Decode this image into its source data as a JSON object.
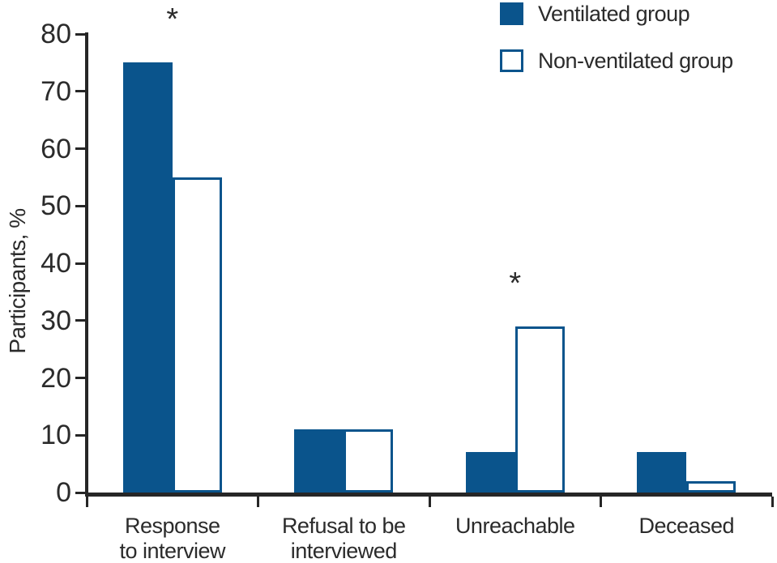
{
  "colors": {
    "bar_blue": "#0a548c",
    "axis": "#262626",
    "text": "#2b2b2b",
    "background": "#ffffff"
  },
  "chart_data": {
    "type": "bar",
    "title": "",
    "xlabel": "",
    "ylabel": "Participants, %",
    "ylim": [
      0,
      80
    ],
    "yticks": [
      0,
      10,
      20,
      30,
      40,
      50,
      60,
      70,
      80
    ],
    "grid": false,
    "legend_position": "top-right",
    "categories": [
      "Response to interview",
      "Refusal to be interviewed",
      "Unreachable",
      "Deceased"
    ],
    "category_label_lines": [
      [
        "Response",
        "to interview"
      ],
      [
        "Refusal to be",
        "interviewed"
      ],
      [
        "Unreachable"
      ],
      [
        "Deceased"
      ]
    ],
    "series": [
      {
        "name": "Ventilated group",
        "style": "solid",
        "values": [
          75,
          11,
          7,
          7
        ]
      },
      {
        "name": "Non-ventilated group",
        "style": "open",
        "values": [
          55,
          11,
          29,
          2
        ]
      }
    ],
    "annotations": [
      {
        "category_index": 0,
        "text": "*"
      },
      {
        "category_index": 2,
        "text": "*"
      }
    ]
  }
}
